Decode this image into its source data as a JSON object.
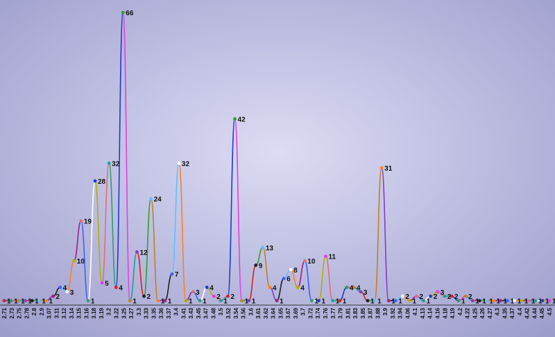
{
  "chart_data": {
    "type": "line",
    "title": "",
    "xlabel": "",
    "ylabel": "",
    "ylim": [
      0,
      66
    ],
    "grid": false,
    "legend": "none",
    "colors": {
      "background_top": "#9a9ac8",
      "background_center": "#d8d8f2",
      "axis": "#333333",
      "segments": [
        "#1e3cc8",
        "#e040e0",
        "#20a0a0",
        "#d82020",
        "#30a030",
        "#c08020",
        "#8040c0",
        "#202020",
        "#60c0ff",
        "#ff8020",
        "#a02080",
        "#4060ff",
        "#ffffff",
        "#b0b000",
        "#e07070",
        "#2aa070"
      ]
    },
    "x": [
      "2.71",
      "2.73",
      "2.75",
      "2.78",
      "2.8",
      "2.9",
      "3.07",
      "3.09",
      "3.11",
      "3.12",
      "3.13",
      "3.14",
      "3.15",
      "3.16",
      "3.18",
      "3.19",
      "3.2",
      "3.22",
      "3.24",
      "3.25",
      "3.27",
      "3.29",
      "3.3",
      "3.33",
      "3.35",
      "3.36",
      "3.37",
      "3.39",
      "3.4",
      "3.41",
      "3.43",
      "3.45",
      "3.47",
      "3.48",
      "3.5",
      "3.52",
      "3.54",
      "3.56",
      "3.6",
      "3.61",
      "3.62",
      "3.64",
      "3.65",
      "3.67",
      "3.69",
      "3.7",
      "3.72",
      "3.74",
      "3.76",
      "3.77",
      "3.79",
      "3.81",
      "3.83",
      "3.85",
      "3.87",
      "3.88",
      "3.9",
      "3.92",
      "3.94",
      "4.06",
      "4.1",
      "4.13",
      "4.14",
      "4.16",
      "4.18",
      "4.19",
      "4.2",
      "4.22",
      "4.25",
      "4.26",
      "4.27",
      "4.3",
      "4.35",
      "4.37",
      "4.4",
      "4.42",
      "4.44",
      "4.45",
      "4.5"
    ],
    "tick_labels": [
      "2.71",
      "2.73",
      "2.75",
      "2.78",
      "2.8",
      "2.9",
      "3.07",
      "3.11",
      "3.12",
      "3.14",
      "3.15",
      "3.16",
      "3.18",
      "3.19",
      "3.2",
      "3.22",
      "3.25",
      "3.27",
      "3.3",
      "3.33",
      "3.35",
      "3.36",
      "3.37",
      "3.4",
      "3.41",
      "3.43",
      "3.45",
      "3.47",
      "3.48",
      "3.5",
      "3.52",
      "3.54",
      "3.56",
      "3.6",
      "3.61",
      "3.62",
      "3.64",
      "3.65",
      "3.67",
      "3.69",
      "3.7",
      "3.72",
      "3.74",
      "3.76",
      "3.77",
      "3.79",
      "3.81",
      "3.83",
      "3.85",
      "3.87",
      "3.88",
      "3.9",
      "3.92",
      "3.94",
      "4.06",
      "4.1",
      "4.13",
      "4.14",
      "4.16",
      "4.18",
      "4.19",
      "4.2",
      "4.22",
      "4.25",
      "4.26",
      "4.27",
      "4.3",
      "4.35",
      "4.37",
      "4.4",
      "4.42",
      "4.44",
      "4.45",
      "4.5"
    ],
    "values": [
      1,
      1,
      1,
      1,
      1,
      1,
      1,
      2,
      4,
      3,
      10,
      19,
      1,
      28,
      5,
      32,
      4,
      66,
      1,
      12,
      2,
      24,
      1,
      1,
      7,
      32,
      1,
      3,
      1,
      4,
      2,
      1,
      2,
      42,
      1,
      1,
      9,
      13,
      4,
      1,
      6,
      8,
      4,
      10,
      1,
      1,
      11,
      1,
      1,
      4,
      4,
      3,
      1,
      1,
      31,
      1,
      1,
      2,
      1,
      2,
      1,
      2,
      3,
      2,
      2,
      1,
      2,
      1,
      1,
      1,
      1,
      1,
      1,
      1,
      1,
      1,
      1,
      1,
      1
    ]
  }
}
